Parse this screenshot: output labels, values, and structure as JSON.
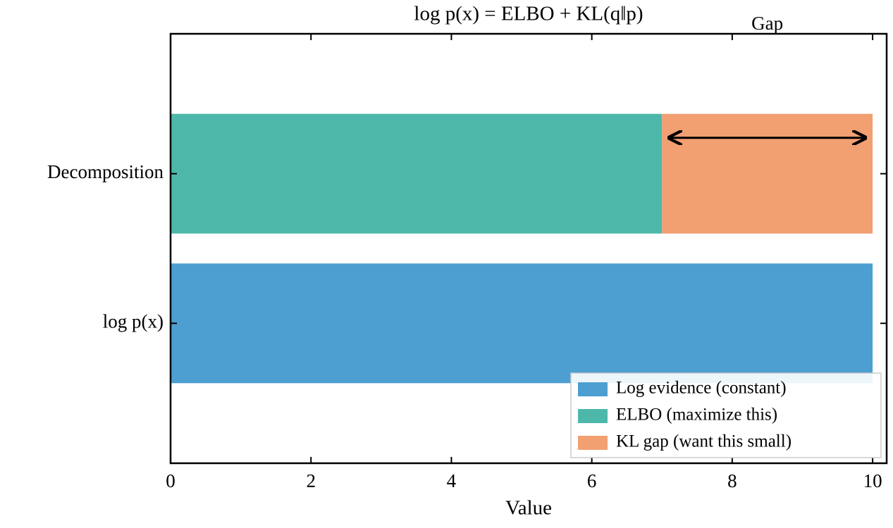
{
  "chart_data": {
    "type": "barh_stacked",
    "title": "log p(x) = ELBO + KL(q‖p)",
    "x_label": "Value",
    "categories": [
      "log p(x)",
      "Decomposition"
    ],
    "series": [
      {
        "name": "Log evidence (constant)",
        "color": "#4c9fd0",
        "values": [
          10,
          null
        ]
      },
      {
        "name": "ELBO (maximize this)",
        "color": "#4db8aa",
        "values": [
          null,
          7
        ]
      },
      {
        "name": "KL gap (want this small)",
        "color": "#f29f72",
        "values": [
          null,
          3
        ]
      }
    ],
    "annotation": "Gap",
    "xlim": [
      0,
      10.2
    ],
    "xticks": [
      0,
      2,
      4,
      6,
      8,
      10
    ],
    "legend": "lower right",
    "grid": false
  }
}
